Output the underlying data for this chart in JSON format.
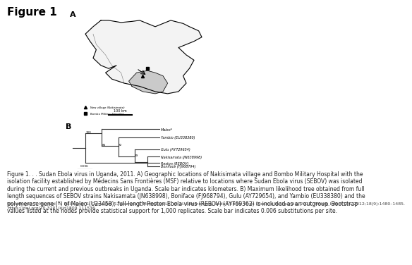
{
  "title": "Figure 1",
  "title_fontsize": 11,
  "title_fontweight": "bold",
  "bg_color": "#ffffff",
  "caption": "Figure 1. . . Sudan Ebola virus in Uganda, 2011. A) Geographic locations of Nakisimata village and Bombo Military Hospital with the\nisolation facility established by Médecins Sans Frontières (MSF) relative to locations where Sudan Ebola virus (SEBOV) was isolated\nduring the current and previous outbreaks in Uganda. Scale bar indicates kilometers. B) Maximum likelihood tree obtained from full\nlength sequences of SEBOV strains Nakisamata (JN638998), Boniface (FJ968794), Gulu (AY729654), and Yambio (EU338380) and the\npolymerase gene (*) of Maleo (U23458); full-length Reston Ebola virus (REBOV) (AY769362) is included as an outgroup. Bootstrap\nvalues listed at the nodes provide statistical support for 1,000 replicates. Scale bar indicates 0.006 substitutions per site.",
  "caption_fontsize": 5.5,
  "citation": "Shoemaker T, MacNeil A, Balinandi S, Campbell S, Wamala J, McMullan LK, et al. Reemerging Sudan Ebola Virus Disease in Uganda, 2011. Emerg Infect Dis. 2012;18(9):1480–1485.\nhttps://doi.org/10.3201/eid1809.111536",
  "citation_fontsize": 4.5,
  "panel_label_A": "A",
  "panel_label_B": "B",
  "map_color": "#d0d0d0",
  "map_highlight_color": "#b0b0b0",
  "tree_line_color": "#333333"
}
